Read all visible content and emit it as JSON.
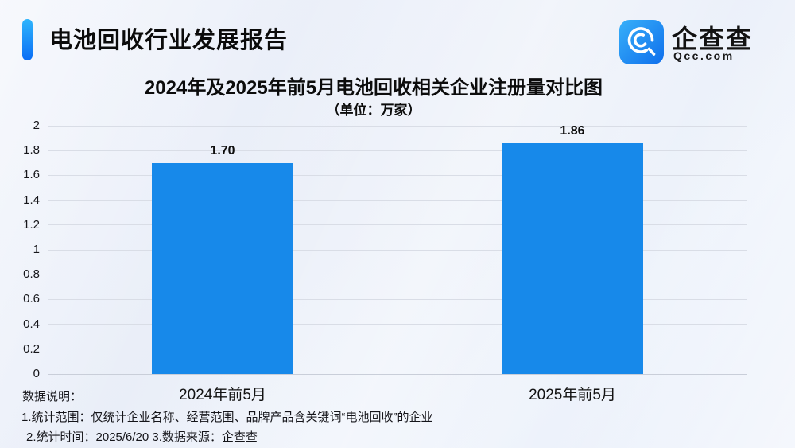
{
  "header": {
    "title": "电池回收行业发展报告"
  },
  "logo": {
    "icon": "qcc-logo-icon",
    "name": "企查查",
    "domain": "Qcc.com",
    "brand_color": "#1b83f2"
  },
  "chart_data": {
    "type": "bar",
    "title": "2024年及2025年前5月电池回收相关企业注册量对比图",
    "subtitle": "（单位：万家）",
    "categories": [
      "2024年前5月",
      "2025年前5月"
    ],
    "values": [
      1.7,
      1.86
    ],
    "value_labels": [
      "1.70",
      "1.86"
    ],
    "xlabel": "",
    "ylabel": "",
    "ylim": [
      0,
      2
    ],
    "ytick_labels": [
      "0",
      "0.2",
      "0.4",
      "0.6",
      "0.8",
      "1",
      "1.2",
      "1.4",
      "1.6",
      "1.8",
      "2"
    ],
    "grid": true,
    "legend": "none",
    "bar_color": "#1789ea",
    "gridline_color": "#d9dde6"
  },
  "footer": {
    "label": "数据说明：",
    "notes": [
      "1.统计范围：仅统计企业名称、经营范围、品牌产品含关键词“电池回收”的企业",
      "2.统计时间：2025/6/20  3.数据来源：企查查"
    ]
  }
}
